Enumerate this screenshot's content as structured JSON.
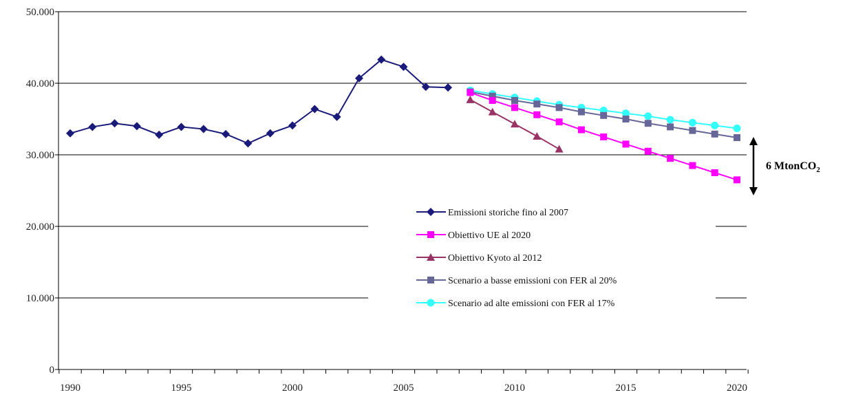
{
  "chart_data": {
    "type": "line",
    "title": "",
    "xlabel": "",
    "ylabel": "",
    "xlim": [
      1990,
      2020
    ],
    "ylim": [
      0,
      50000
    ],
    "x_ticks": [
      "1990",
      "1995",
      "2000",
      "2005",
      "2010",
      "2015",
      "2020"
    ],
    "y_ticks": [
      "0",
      "10.000",
      "20.000",
      "30.000",
      "40.000",
      "50.000"
    ],
    "grid": "horizontal",
    "legend_position": "lower-right",
    "series": [
      {
        "name": "Emissioni storiche fino al 2007",
        "color": "#1a1a7a",
        "marker": "diamond",
        "x": [
          1990,
          1991,
          1992,
          1993,
          1994,
          1995,
          1996,
          1997,
          1998,
          1999,
          2000,
          2001,
          2002,
          2003,
          2004,
          2005,
          2006,
          2007
        ],
        "values": [
          33000,
          33900,
          34400,
          34000,
          32800,
          33900,
          33600,
          32900,
          31600,
          33000,
          34100,
          36400,
          35300,
          40700,
          43300,
          42300,
          39500,
          39400
        ]
      },
      {
        "name": "Obiettivo UE al 2020",
        "color": "#ff00ff",
        "marker": "square",
        "x": [
          2008,
          2009,
          2010,
          2011,
          2012,
          2013,
          2014,
          2015,
          2016,
          2017,
          2018,
          2019,
          2020
        ],
        "values": [
          38700,
          37600,
          36600,
          35600,
          34600,
          33500,
          32500,
          31500,
          30500,
          29500,
          28500,
          27500,
          26500
        ]
      },
      {
        "name": "Obiettivo Kyoto al 2012",
        "color": "#993366",
        "marker": "triangle",
        "x": [
          2008,
          2009,
          2010,
          2011,
          2012
        ],
        "values": [
          37700,
          36000,
          34300,
          32600,
          30800
        ]
      },
      {
        "name": "Scenario a basse emissioni con FER al 20%",
        "color": "#666699",
        "marker": "square",
        "x": [
          2008,
          2009,
          2010,
          2011,
          2012,
          2013,
          2014,
          2015,
          2016,
          2017,
          2018,
          2019,
          2020
        ],
        "values": [
          38800,
          38200,
          37600,
          37100,
          36600,
          36000,
          35500,
          35000,
          34400,
          33900,
          33400,
          32900,
          32400
        ]
      },
      {
        "name": "Scenario ad alte emissioni con FER al 17%",
        "color": "#33ffff",
        "marker": "circle",
        "x": [
          2008,
          2009,
          2010,
          2011,
          2012,
          2013,
          2014,
          2015,
          2016,
          2017,
          2018,
          2019,
          2020
        ],
        "values": [
          39000,
          38500,
          38000,
          37500,
          37000,
          36600,
          36200,
          35800,
          35400,
          34900,
          34500,
          34100,
          33700
        ]
      }
    ],
    "annotation": {
      "label": "6 MtonCO",
      "subscript": "2"
    }
  }
}
